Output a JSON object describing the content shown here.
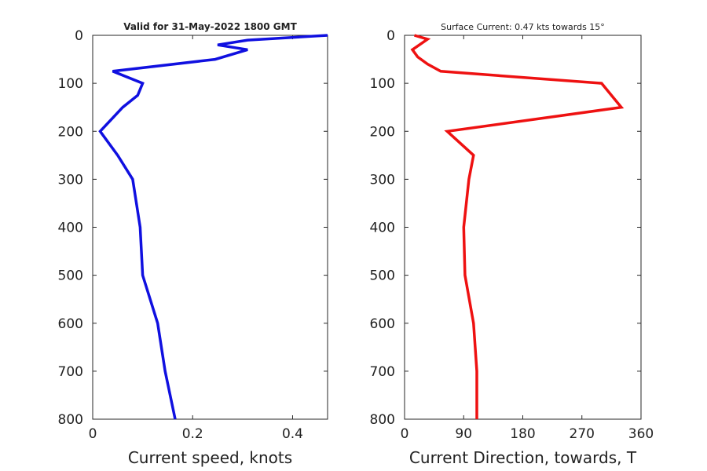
{
  "chart_data": [
    {
      "type": "line",
      "title": "Valid for 31-May-2022 1800 GMT",
      "xlabel": "Current speed, knots",
      "ylabel": "",
      "xlim": [
        0,
        0.47
      ],
      "ylim": [
        800,
        0
      ],
      "xticks": [
        "0",
        "0.2",
        "0.4"
      ],
      "xtick_values": [
        0,
        0.2,
        0.4
      ],
      "yticks": [
        "0",
        "100",
        "200",
        "300",
        "400",
        "500",
        "600",
        "700",
        "800"
      ],
      "ytick_values": [
        0,
        100,
        200,
        300,
        400,
        500,
        600,
        700,
        800
      ],
      "color": "#1010e0",
      "series": [
        {
          "x": [
            0.47,
            0.31,
            0.25,
            0.31,
            0.245,
            0.04,
            0.1,
            0.09,
            0.06,
            0.015,
            0.05,
            0.08,
            0.095,
            0.1,
            0.13,
            0.145,
            0.165
          ],
          "y": [
            0,
            10,
            20,
            30,
            50,
            75,
            100,
            125,
            150,
            200,
            250,
            300,
            400,
            500,
            600,
            700,
            800
          ]
        }
      ]
    },
    {
      "type": "line",
      "title": "Surface Current: 0.47 kts towards 15°",
      "xlabel": "Current Direction, towards, T",
      "ylabel": "",
      "xlim": [
        0,
        360
      ],
      "ylim": [
        800,
        0
      ],
      "xticks": [
        "0",
        "90",
        "180",
        "270",
        "360"
      ],
      "xtick_values": [
        0,
        90,
        180,
        270,
        360
      ],
      "yticks": [
        "0",
        "100",
        "200",
        "300",
        "400",
        "500",
        "600",
        "700",
        "800"
      ],
      "ytick_values": [
        0,
        100,
        200,
        300,
        400,
        500,
        600,
        700,
        800
      ],
      "color": "#ee1111",
      "series": [
        {
          "x": [
            15,
            35,
            12,
            20,
            35,
            55,
            300,
            330,
            65,
            105,
            98,
            90,
            92,
            105,
            110,
            110
          ],
          "y": [
            0,
            8,
            30,
            45,
            60,
            75,
            100,
            150,
            200,
            250,
            300,
            400,
            500,
            600,
            700,
            800
          ]
        }
      ]
    }
  ]
}
